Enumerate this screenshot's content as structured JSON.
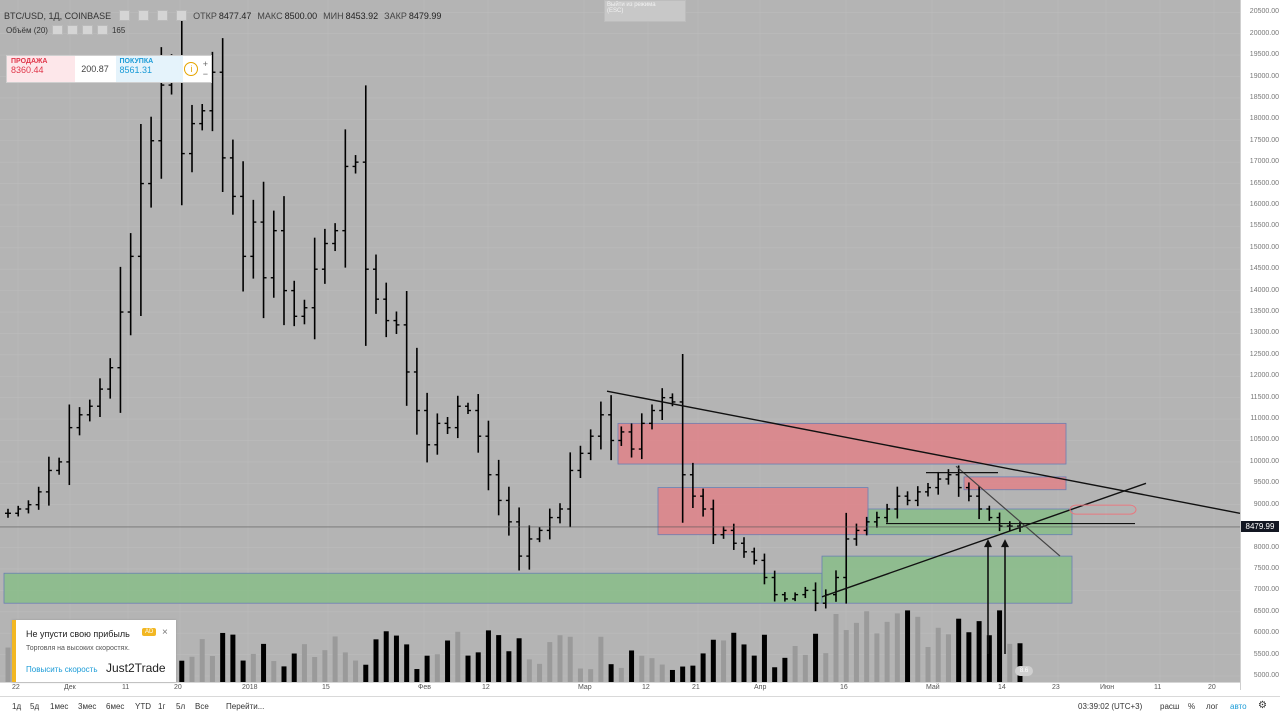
{
  "legend": {
    "symbol": "BTC/USD, 1Д, COINBASE",
    "open_label": "ОТКР",
    "open_value": "8477.47",
    "high_label": "МАКС",
    "high_value": "8500.00",
    "low_label": "МИН",
    "low_value": "8453.92",
    "close_label": "ЗАКР",
    "close_value": "8479.99"
  },
  "volume_legend": {
    "label": "Объём (20)",
    "value": "165"
  },
  "trade_widget": {
    "sell_label": "ПРОДАЖА",
    "sell_price": "8360.44",
    "spread": "200.87",
    "buy_label": "ПОКУПКА",
    "buy_price": "8561.31",
    "info_symbol": "i",
    "plus": "+",
    "minus": "−"
  },
  "esc_tooltip": {
    "line1": "Выйти из режима",
    "line2": "(ESC)"
  },
  "price_axis": {
    "ticks": [
      "20500.00",
      "20000.00",
      "19500.00",
      "19000.00",
      "18500.00",
      "18000.00",
      "17500.00",
      "17000.00",
      "16500.00",
      "16000.00",
      "15500.00",
      "15000.00",
      "14500.00",
      "14000.00",
      "13500.00",
      "13000.00",
      "12500.00",
      "12000.00",
      "11500.00",
      "11000.00",
      "10500.00",
      "10000.00",
      "9500.00",
      "9000.00",
      "8500.00",
      "8000.00",
      "7500.00",
      "7000.00",
      "6500.00",
      "6000.00",
      "5500.00",
      "5000.00"
    ],
    "current_price": "8479.99"
  },
  "time_axis": {
    "labels": [
      "22",
      "Дек",
      "11",
      "20",
      "2018",
      "15",
      "Фев",
      "12",
      "Мар",
      "12",
      "21",
      "Апр",
      "16",
      "Май",
      "14",
      "23",
      "Июн",
      "11",
      "20"
    ]
  },
  "ad": {
    "title": "Не упусти свою прибыль",
    "badge": "AD",
    "close": "×",
    "subtitle": "Торговля на высоких скоростях.",
    "link": "Повысить скорость",
    "brand": "Just2Trade"
  },
  "bottom_bar": {
    "intervals": [
      "1д",
      "5д",
      "1мес",
      "3мес",
      "6мес",
      "YTD",
      "1г",
      "5л",
      "Все"
    ],
    "goto": "Перейти...",
    "time": "03:39:02 (UTC+3)",
    "session": "расш",
    "percent": "%",
    "log": "лог",
    "auto": "авто",
    "settings_icon": "gear-icon"
  },
  "flag_badge": "8.6",
  "colors": {
    "chart_bg": "#b4b4b4",
    "resistance_zone": "#e8787f",
    "support_zone": "#7fbf7f",
    "bars": "#000000",
    "volume_up": "#9a9a9a",
    "volume_down": "#000000"
  },
  "chart_data": {
    "type": "ohlc",
    "ylim": [
      5000,
      20600
    ],
    "close_series": [
      8800,
      8900,
      9000,
      9300,
      9800,
      10000,
      10800,
      11100,
      11300,
      11700,
      12200,
      13500,
      14800,
      16500,
      17500,
      18800,
      19300,
      17200,
      17900,
      18200,
      19100,
      17100,
      16200,
      14800,
      15600,
      14300,
      15400,
      14000,
      13400,
      13600,
      14500,
      15100,
      15400,
      16900,
      17000,
      14500,
      13800,
      13300,
      13200,
      12100,
      11200,
      10400,
      10900,
      10800,
      11300,
      11200,
      10600,
      9700,
      9100,
      8600,
      7800,
      8200,
      8400,
      8700,
      8900,
      9800,
      10200,
      10600,
      11100,
      10500,
      10700,
      10300,
      10900,
      11200,
      11500,
      11400,
      9700,
      9200,
      8900,
      8300,
      8400,
      8100,
      7900,
      7700,
      7300,
      6900,
      6800,
      6900,
      7000,
      6700,
      6900,
      7300,
      8200,
      8400,
      8600,
      8700,
      8900,
      9200,
      9100,
      9300,
      9400,
      9600,
      9700,
      9400,
      9200,
      8900,
      8700,
      8500,
      8500,
      8480
    ],
    "zones": [
      {
        "kind": "resistance",
        "from_price": 9950,
        "to_price": 10900
      },
      {
        "kind": "resistance",
        "from_price": 8300,
        "to_price": 9400
      },
      {
        "kind": "resistance",
        "from_price": 9350,
        "to_price": 9650
      },
      {
        "kind": "support",
        "from_price": 6700,
        "to_price": 7400
      },
      {
        "kind": "support",
        "from_price": 6700,
        "to_price": 7800
      },
      {
        "kind": "support",
        "from_price": 8300,
        "to_price": 8900
      }
    ]
  }
}
